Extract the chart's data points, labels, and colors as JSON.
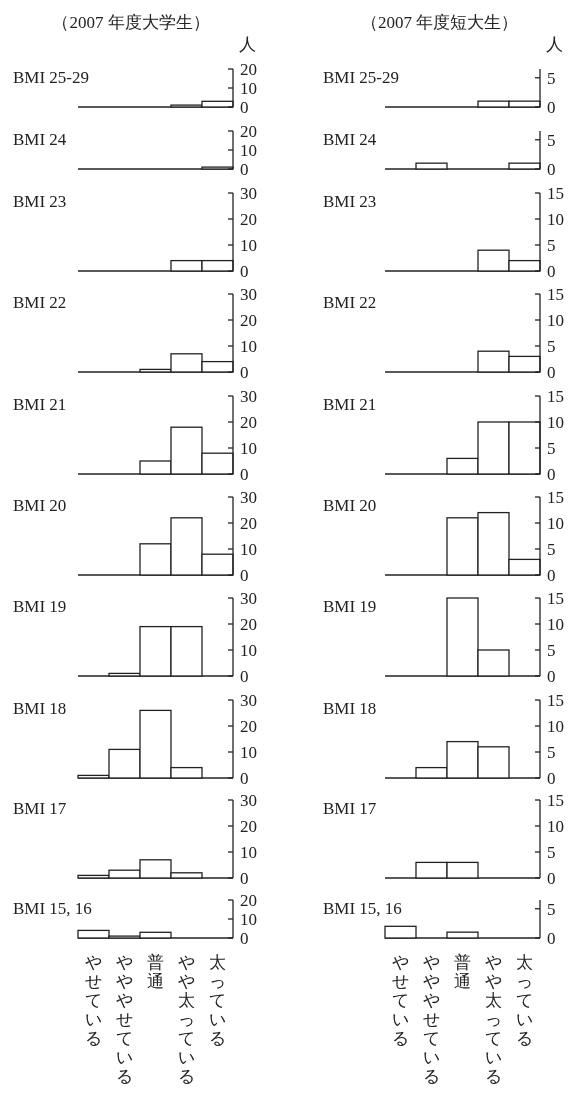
{
  "chart_data": [
    {
      "type": "bar",
      "subtitle": "（2007 年度大学生）",
      "ylabel": "人",
      "title": "BMI 25-29",
      "categories": [
        null,
        null,
        null,
        null,
        null
      ],
      "values": [
        0,
        0,
        0,
        1,
        3
      ],
      "color": "#ffffff",
      "ylim": [
        0,
        20
      ],
      "yticks": [
        0,
        10,
        20
      ],
      "tick_labels": "y"
    },
    {
      "type": "bar",
      "title": "BMI 24",
      "categories": [
        null,
        null,
        null,
        null,
        null
      ],
      "values": [
        0,
        0,
        0,
        0,
        1
      ],
      "color": "#ffffff",
      "ylim": [
        0,
        20
      ],
      "yticks": [
        0,
        10,
        20
      ],
      "tick_labels": "y"
    },
    {
      "type": "bar",
      "title": "BMI 23",
      "categories": [
        null,
        null,
        null,
        null,
        null
      ],
      "values": [
        0,
        0,
        0,
        4,
        4
      ],
      "color": "#ffffff",
      "ylim": [
        0,
        30
      ],
      "yticks": [
        0,
        10,
        20,
        30
      ],
      "tick_labels": "y"
    },
    {
      "type": "bar",
      "title": "BMI 22",
      "categories": [
        null,
        null,
        null,
        null,
        null
      ],
      "values": [
        0,
        0,
        1,
        7,
        4
      ],
      "color": "#ffffff",
      "ylim": [
        0,
        30
      ],
      "yticks": [
        0,
        10,
        20,
        30
      ],
      "tick_labels": "y"
    },
    {
      "type": "bar",
      "title": "BMI 21",
      "categories": [
        null,
        null,
        null,
        null,
        null
      ],
      "values": [
        0,
        0,
        5,
        18,
        8
      ],
      "color": "#ffffff",
      "ylim": [
        0,
        30
      ],
      "yticks": [
        0,
        10,
        20,
        30
      ],
      "tick_labels": "y"
    },
    {
      "type": "bar",
      "title": "BMI 20",
      "categories": [
        null,
        null,
        null,
        null,
        null
      ],
      "values": [
        0,
        0,
        12,
        22,
        8
      ],
      "color": "#ffffff",
      "ylim": [
        0,
        30
      ],
      "yticks": [
        0,
        10,
        20,
        30
      ],
      "tick_labels": "y"
    },
    {
      "type": "bar",
      "title": "BMI 19",
      "categories": [
        null,
        null,
        null,
        null,
        null
      ],
      "values": [
        0,
        1,
        19,
        19,
        0
      ],
      "color": "#ffffff",
      "ylim": [
        0,
        30
      ],
      "yticks": [
        0,
        10,
        20,
        30
      ],
      "tick_labels": "y"
    },
    {
      "type": "bar",
      "title": "BMI 18",
      "categories": [
        null,
        null,
        null,
        null,
        null
      ],
      "values": [
        1,
        11,
        26,
        4,
        0
      ],
      "color": "#ffffff",
      "ylim": [
        0,
        30
      ],
      "yticks": [
        0,
        10,
        20,
        30
      ],
      "tick_labels": "y"
    },
    {
      "type": "bar",
      "title": "BMI 17",
      "categories": [
        null,
        null,
        null,
        null,
        null
      ],
      "values": [
        1,
        3,
        7,
        2,
        0
      ],
      "color": "#ffffff",
      "ylim": [
        0,
        30
      ],
      "yticks": [
        0,
        10,
        20,
        30
      ],
      "tick_labels": "y"
    },
    {
      "type": "bar",
      "title": "BMI 15, 16",
      "categories": [
        "やせている",
        "やややせている",
        "普通",
        "やや太っている",
        "太っている"
      ],
      "values": [
        4,
        1,
        3,
        0,
        0
      ],
      "color": "#ffffff",
      "ylim": [
        0,
        20
      ],
      "yticks": [
        0,
        10,
        20
      ]
    },
    {
      "type": "bar",
      "subtitle": "（2007 年度短大生）",
      "ylabel": "人",
      "title": "BMI 25-29",
      "categories": [
        null,
        null,
        null,
        null,
        null
      ],
      "values": [
        0,
        0,
        0,
        1,
        1
      ],
      "color": "#ffffff",
      "ylim": [
        0,
        6.5
      ],
      "yticks": [
        0,
        5
      ],
      "tick_labels": "y"
    },
    {
      "type": "bar",
      "title": "BMI 24",
      "categories": [
        null,
        null,
        null,
        null,
        null
      ],
      "values": [
        0,
        1,
        0,
        0,
        1
      ],
      "color": "#ffffff",
      "ylim": [
        0,
        6.5
      ],
      "yticks": [
        0,
        5
      ],
      "tick_labels": "y"
    },
    {
      "type": "bar",
      "title": "BMI 23",
      "categories": [
        null,
        null,
        null,
        null,
        null
      ],
      "values": [
        0,
        0,
        0,
        4,
        2
      ],
      "color": "#ffffff",
      "ylim": [
        0,
        15
      ],
      "yticks": [
        0,
        5,
        10,
        15
      ],
      "tick_labels": "y"
    },
    {
      "type": "bar",
      "title": "BMI 22",
      "categories": [
        null,
        null,
        null,
        null,
        null
      ],
      "values": [
        0,
        0,
        0,
        4,
        3
      ],
      "color": "#ffffff",
      "ylim": [
        0,
        15
      ],
      "yticks": [
        0,
        5,
        10,
        15
      ],
      "tick_labels": "y"
    },
    {
      "type": "bar",
      "title": "BMI 21",
      "categories": [
        null,
        null,
        null,
        null,
        null
      ],
      "values": [
        0,
        0,
        3,
        10,
        10
      ],
      "color": "#ffffff",
      "ylim": [
        0,
        15
      ],
      "yticks": [
        0,
        5,
        10,
        15
      ],
      "tick_labels": "y"
    },
    {
      "type": "bar",
      "title": "BMI 20",
      "categories": [
        null,
        null,
        null,
        null,
        null
      ],
      "values": [
        0,
        0,
        11,
        12,
        3
      ],
      "color": "#ffffff",
      "ylim": [
        0,
        15
      ],
      "yticks": [
        0,
        5,
        10,
        15
      ],
      "tick_labels": "y"
    },
    {
      "type": "bar",
      "title": "BMI 19",
      "categories": [
        null,
        null,
        null,
        null,
        null
      ],
      "values": [
        0,
        0,
        15,
        5,
        0
      ],
      "color": "#ffffff",
      "ylim": [
        0,
        15
      ],
      "yticks": [
        0,
        5,
        10,
        15
      ],
      "tick_labels": "y"
    },
    {
      "type": "bar",
      "title": "BMI 18",
      "categories": [
        null,
        null,
        null,
        null,
        null
      ],
      "values": [
        0,
        2,
        7,
        6,
        0
      ],
      "color": "#ffffff",
      "ylim": [
        0,
        15
      ],
      "yticks": [
        0,
        5,
        10,
        15
      ],
      "tick_labels": "y"
    },
    {
      "type": "bar",
      "title": "BMI 17",
      "categories": [
        null,
        null,
        null,
        null,
        null
      ],
      "values": [
        0,
        3,
        3,
        0,
        0
      ],
      "color": "#ffffff",
      "ylim": [
        0,
        15
      ],
      "yticks": [
        0,
        5,
        10,
        15
      ],
      "tick_labels": "y"
    },
    {
      "type": "bar",
      "title": "BMI 15, 16",
      "categories": [
        "やせている",
        "やややせている",
        "普通",
        "やや太っている",
        "太っている"
      ],
      "values": [
        2,
        0,
        1,
        0,
        0
      ],
      "color": "#ffffff",
      "ylim": [
        0,
        6.5
      ],
      "yticks": [
        0,
        5
      ]
    }
  ]
}
